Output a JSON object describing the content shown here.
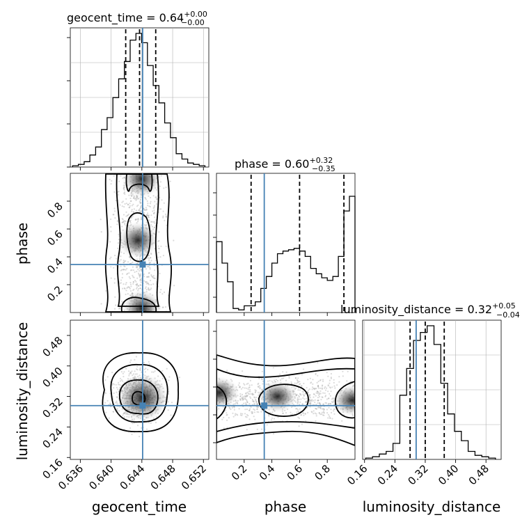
{
  "titles": {
    "t0": {
      "name": "geocent_time = 0.64",
      "sup": "+0.00",
      "sub": "−0.00"
    },
    "t1": {
      "name": "phase = 0.60",
      "sup": "+0.32",
      "sub": "−0.35"
    },
    "t2": {
      "name": "luminosity_distance = 0.32",
      "sup": "+0.05",
      "sub": "−0.04"
    }
  },
  "axis_labels": {
    "x0": "geocent_time",
    "x1": "phase",
    "x2": "luminosity_distance",
    "y1": "phase",
    "y2": "luminosity_distance"
  },
  "colors": {
    "truth": "#4682b4",
    "hist": "#000000",
    "grid": "#b0b0b0"
  },
  "chart_data": {
    "type": "corner",
    "parameters": [
      "geocent_time",
      "phase",
      "luminosity_distance"
    ],
    "ranges": {
      "geocent_time": [
        0.6347,
        0.6527
      ],
      "phase": [
        0.0,
        1.0
      ],
      "luminosity_distance": [
        0.155,
        0.52
      ]
    },
    "ticks": {
      "geocent_time": [
        "0.636",
        "0.640",
        "0.644",
        "0.648",
        "0.652"
      ],
      "phase": [
        "0.2",
        "0.4",
        "0.6",
        "0.8"
      ],
      "luminosity_distance": [
        "0.16",
        "0.24",
        "0.32",
        "0.40",
        "0.48"
      ],
      "luminosity_distance_diag": [
        "0.16",
        "0.24",
        "0.32",
        "0.40",
        "0.48"
      ]
    },
    "truths": {
      "geocent_time": 0.6441,
      "phase": 0.345,
      "luminosity_distance": 0.296
    },
    "quantiles": {
      "geocent_time": [
        0.6419,
        0.6437,
        0.6458
      ],
      "phase": [
        0.25,
        0.6,
        0.92
      ],
      "luminosity_distance": [
        0.28,
        0.32,
        0.37
      ]
    },
    "histograms": {
      "geocent_time": [
        0.01,
        0.02,
        0.04,
        0.09,
        0.15,
        0.28,
        0.37,
        0.52,
        0.66,
        0.79,
        0.95,
        1.0,
        0.93,
        0.76,
        0.61,
        0.48,
        0.33,
        0.22,
        0.1,
        0.06,
        0.03,
        0.02,
        0.01
      ],
      "phase": [
        0.53,
        0.37,
        0.23,
        0.03,
        0.02,
        0.05,
        0.05,
        0.08,
        0.18,
        0.27,
        0.37,
        0.44,
        0.46,
        0.47,
        0.48,
        0.46,
        0.42,
        0.33,
        0.29,
        0.26,
        0.24,
        0.27,
        0.42,
        0.76,
        0.87
      ],
      "luminosity_distance": [
        0.01,
        0.02,
        0.04,
        0.06,
        0.12,
        0.48,
        0.68,
        0.89,
        0.95,
        1.0,
        0.86,
        0.57,
        0.34,
        0.21,
        0.14,
        0.06,
        0.03,
        0.02,
        0.01
      ]
    },
    "hist_max": {
      "geocent_time": 1.0,
      "phase": 1.0,
      "luminosity_distance": 1.0
    },
    "hist_ranges": {
      "geocent_time": [
        0.635,
        0.6522
      ],
      "phase": [
        0.0,
        1.0
      ],
      "luminosity_distance": [
        0.163,
        0.505
      ]
    },
    "density_centers": {
      "phase_vs_geocent_time": [
        [
          0.644,
          0.96
        ],
        [
          0.6435,
          0.52
        ],
        [
          0.644,
          0.03
        ]
      ],
      "luminosity_distance_vs_geocent_time": [
        [
          0.6441,
          0.316
        ]
      ],
      "luminosity_distance_vs_phase": [
        [
          0.02,
          0.33
        ],
        [
          0.44,
          0.32
        ],
        [
          0.98,
          0.31
        ]
      ]
    }
  }
}
